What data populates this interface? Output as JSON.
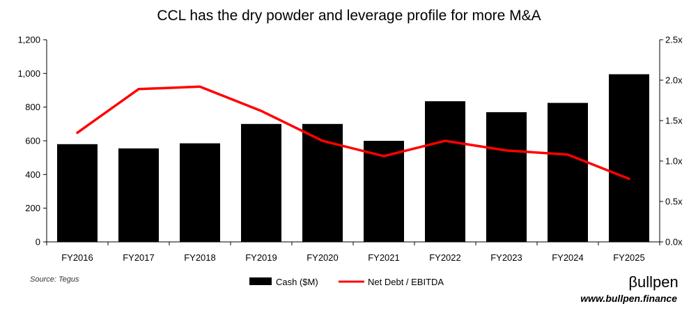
{
  "chart_data": {
    "type": "bar",
    "title": "CCL has the dry powder and leverage profile for more M&A",
    "categories": [
      "FY2016",
      "FY2017",
      "FY2018",
      "FY2019",
      "FY2020",
      "FY2021",
      "FY2022",
      "FY2023",
      "FY2024",
      "FY2025"
    ],
    "series": [
      {
        "name": "Cash ($M)",
        "type": "bar",
        "axis": "left",
        "color": "#000000",
        "values": [
          580,
          555,
          585,
          700,
          700,
          600,
          835,
          770,
          825,
          995
        ]
      },
      {
        "name": "Net Debt / EBITDA",
        "type": "line",
        "axis": "right",
        "color": "#ff0000",
        "values": [
          1.35,
          1.89,
          1.92,
          1.62,
          1.25,
          1.06,
          1.25,
          1.13,
          1.08,
          0.78
        ]
      }
    ],
    "yleft": {
      "ylim": [
        0,
        1200
      ],
      "ticks": [
        "0",
        "200",
        "400",
        "600",
        "800",
        "1,000",
        "1,200"
      ]
    },
    "yright": {
      "ylim": [
        0,
        2.5
      ],
      "ticks": [
        "0.0x",
        "0.5x",
        "1.0x",
        "1.5x",
        "2.0x",
        "2.5x"
      ]
    },
    "legend": {
      "placement": "bottom-center"
    },
    "grid": false
  },
  "footer": {
    "source": "Source: Tegus",
    "logo_text": "βullpen",
    "url": "www.bullpen.finance"
  }
}
